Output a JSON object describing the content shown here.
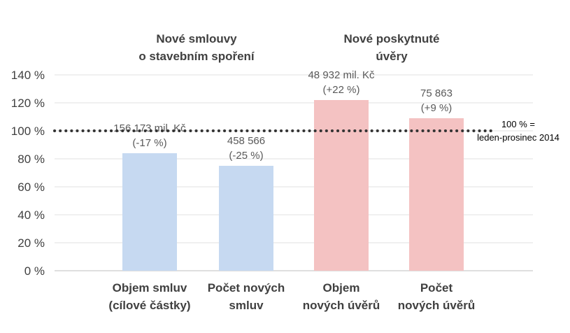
{
  "chart_data": {
    "type": "bar",
    "title": "",
    "xlabel": "",
    "ylabel": "",
    "ylim": [
      0,
      140
    ],
    "yticks": [
      0,
      20,
      40,
      60,
      80,
      100,
      120,
      140
    ],
    "ytick_labels": [
      "0 %",
      "20 %",
      "40 %",
      "60 %",
      "80 %",
      "100 %",
      "120 %",
      "140 %"
    ],
    "grid": true,
    "legend": "none",
    "groups": [
      {
        "title_lines": [
          "Nové smlouvy",
          "o stavebním spoření"
        ]
      },
      {
        "title_lines": [
          "Nové poskytnuté",
          "úvěry"
        ]
      }
    ],
    "categories": [
      {
        "lines": [
          "Objem smluv",
          "(cílové částky)"
        ]
      },
      {
        "lines": [
          "Počet  nových",
          "smluv"
        ]
      },
      {
        "lines": [
          "Objem",
          "nových úvěrů"
        ]
      },
      {
        "lines": [
          "Počet",
          "nových úvěrů"
        ]
      }
    ],
    "values": [
      84,
      75,
      122,
      109
    ],
    "colors": [
      "#c6d9f1",
      "#c6d9f1",
      "#f4c2c2",
      "#f4c2c2"
    ],
    "data_labels": [
      [
        "156 173  mil. Kč",
        "(-17 %)"
      ],
      [
        "458 566",
        "(-25 %)"
      ],
      [
        "48 932 mil. Kč",
        "(+22 %)"
      ],
      [
        "75 863",
        "(+9 %)"
      ]
    ],
    "reference_line": {
      "value": 100,
      "style": "dotted",
      "label_lines": [
        "100 % =",
        "leden-prosinec 2014"
      ]
    }
  }
}
